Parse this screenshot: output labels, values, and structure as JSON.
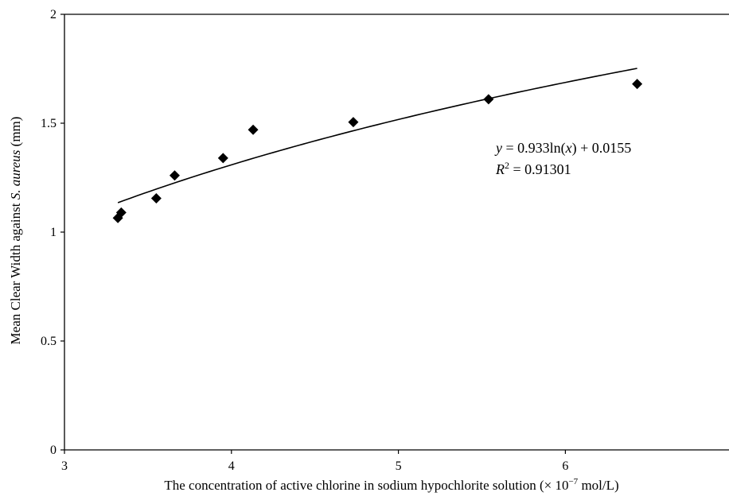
{
  "chart_data": {
    "type": "scatter",
    "x": [
      3.32,
      3.34,
      3.55,
      3.66,
      3.95,
      4.13,
      4.73,
      5.54,
      6.43
    ],
    "y": [
      1.065,
      1.09,
      1.155,
      1.26,
      1.34,
      1.47,
      1.505,
      1.61,
      1.68
    ],
    "xlim": [
      3,
      6.98
    ],
    "ylim": [
      0,
      2
    ],
    "x_ticks": [
      "3",
      "4",
      "5",
      "6"
    ],
    "y_ticks": [
      "0",
      "0.5",
      "1",
      "1.5",
      "2"
    ],
    "xlabel": {
      "prefix": "The concentration of active chlorine in sodium hypochlorite solution (× 10",
      "exponent": "−7",
      "suffix": " mol/L)"
    },
    "ylabel": {
      "prefix": "Mean Clear Width against ",
      "italic": "S. aureus",
      "suffix": " (mm)"
    },
    "trendline": {
      "type": "logarithmic",
      "a": 0.933,
      "b": 0.0155,
      "x_start": 3.32,
      "x_end": 6.43,
      "equation": {
        "y_var": "y",
        "mid": " = 0.933ln(",
        "x_var": "x",
        "end": ") + 0.0155"
      },
      "r_squared": {
        "r_var": "R",
        "exponent": "2",
        "value_text": " = 0.91301"
      }
    },
    "grid": false,
    "legend": "none",
    "marker": "diamond",
    "marker_color": "#000000"
  }
}
